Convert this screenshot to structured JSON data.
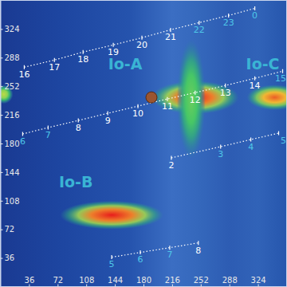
{
  "chart_data": {
    "type": "emission_map",
    "xlim": [
      0,
      360
    ],
    "ylim": [
      0,
      360
    ],
    "xticks": [
      36,
      72,
      108,
      144,
      180,
      216,
      252,
      288,
      324
    ],
    "yticks": [
      36,
      72,
      108,
      144,
      180,
      216,
      252,
      288,
      324
    ],
    "emission": [
      {
        "x": 245,
        "y": 238,
        "width": 110,
        "height": 42,
        "level": 1.0
      },
      {
        "x": 240,
        "y": 236,
        "width": 36,
        "height": 150,
        "level": 0.45
      },
      {
        "x": 345,
        "y": 238,
        "width": 70,
        "height": 32,
        "level": 0.9
      },
      {
        "x": 4,
        "y": 242,
        "width": 24,
        "height": 24,
        "level": 0.6
      },
      {
        "x": 140,
        "y": 90,
        "width": 130,
        "height": 36,
        "level": 1.0
      }
    ],
    "io_position": {
      "x": 190,
      "y": 238
    },
    "annotations": [
      {
        "text": "Io-A",
        "x": 157,
        "y": 280
      },
      {
        "text": "Io-B",
        "x": 95,
        "y": 132
      },
      {
        "text": "Io-C",
        "x": 330,
        "y": 280
      }
    ],
    "series": [
      {
        "type": "line",
        "color": "#ffffff",
        "line_style": "dotted",
        "x": [
          30,
          68,
          104,
          142,
          178,
          214,
          250,
          287,
          320
        ],
        "values": [
          276,
          285,
          295,
          304,
          313,
          323,
          332,
          341,
          350
        ],
        "labels": [
          16,
          17,
          18,
          19,
          20,
          21,
          22,
          23,
          0
        ],
        "colors": [
          "#ffffff",
          "#ffffff",
          "#ffffff",
          "#ffffff",
          "#ffffff",
          "#ffffff",
          "#4ec8e8",
          "#4ec8e8",
          "#4ec8e8"
        ]
      },
      {
        "type": "line",
        "color": "#ffffff",
        "line_style": "dotted",
        "x": [
          28,
          60,
          98,
          135,
          173,
          210,
          245,
          283,
          320,
          355
        ],
        "values": [
          192,
          200,
          209,
          218,
          227,
          236,
          244,
          253,
          262,
          271
        ],
        "labels": [
          6,
          7,
          8,
          9,
          10,
          11,
          12,
          13,
          14,
          15
        ],
        "colors": [
          "#4ec8e8",
          "#4ec8e8",
          "#ffffff",
          "#ffffff",
          "#ffffff",
          "#ffffff",
          "#ffffff",
          "#ffffff",
          "#ffffff",
          "#4ec8e8"
        ]
      },
      {
        "type": "line",
        "color": "#ffffff",
        "line_style": "dotted",
        "x": [
          215,
          277,
          315,
          350
        ],
        "values": [
          162,
          176,
          185,
          193
        ],
        "labels": [
          2,
          3,
          4,
          5
        ],
        "colors": [
          "#ffffff",
          "#4ec8e8",
          "#4ec8e8",
          "#4ec8e8"
        ]
      },
      {
        "type": "line",
        "color": "#ffffff",
        "line_style": "dotted",
        "x": [
          140,
          176,
          213,
          249
        ],
        "values": [
          37,
          43,
          49,
          55
        ],
        "labels": [
          5,
          6,
          7,
          8
        ],
        "colors": [
          "#4ec8e8",
          "#4ec8e8",
          "#4ec8e8",
          "#ffffff"
        ]
      }
    ]
  }
}
